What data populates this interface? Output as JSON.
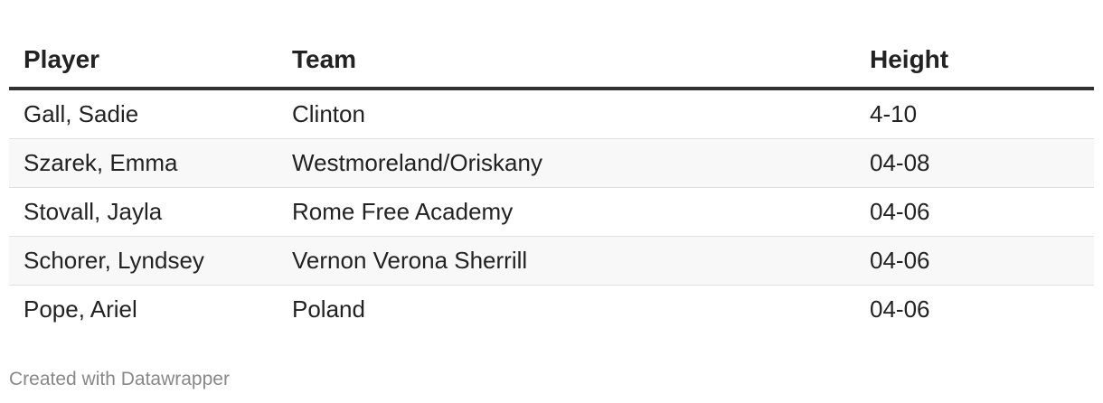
{
  "table": {
    "header": [
      "Player",
      "Team",
      "Height"
    ],
    "rows": [
      [
        "Gall, Sadie",
        "Clinton",
        "4-10"
      ],
      [
        "Szarek, Emma",
        "Westmoreland/Oriskany",
        "04-08"
      ],
      [
        "Stovall, Jayla",
        "Rome Free Academy",
        "04-06"
      ],
      [
        "Schorer, Lyndsey",
        "Vernon Verona Sherrill",
        "04-06"
      ],
      [
        "Pope, Ariel",
        "Poland",
        "04-06"
      ]
    ]
  },
  "footer": {
    "credit": "Created with Datawrapper"
  }
}
